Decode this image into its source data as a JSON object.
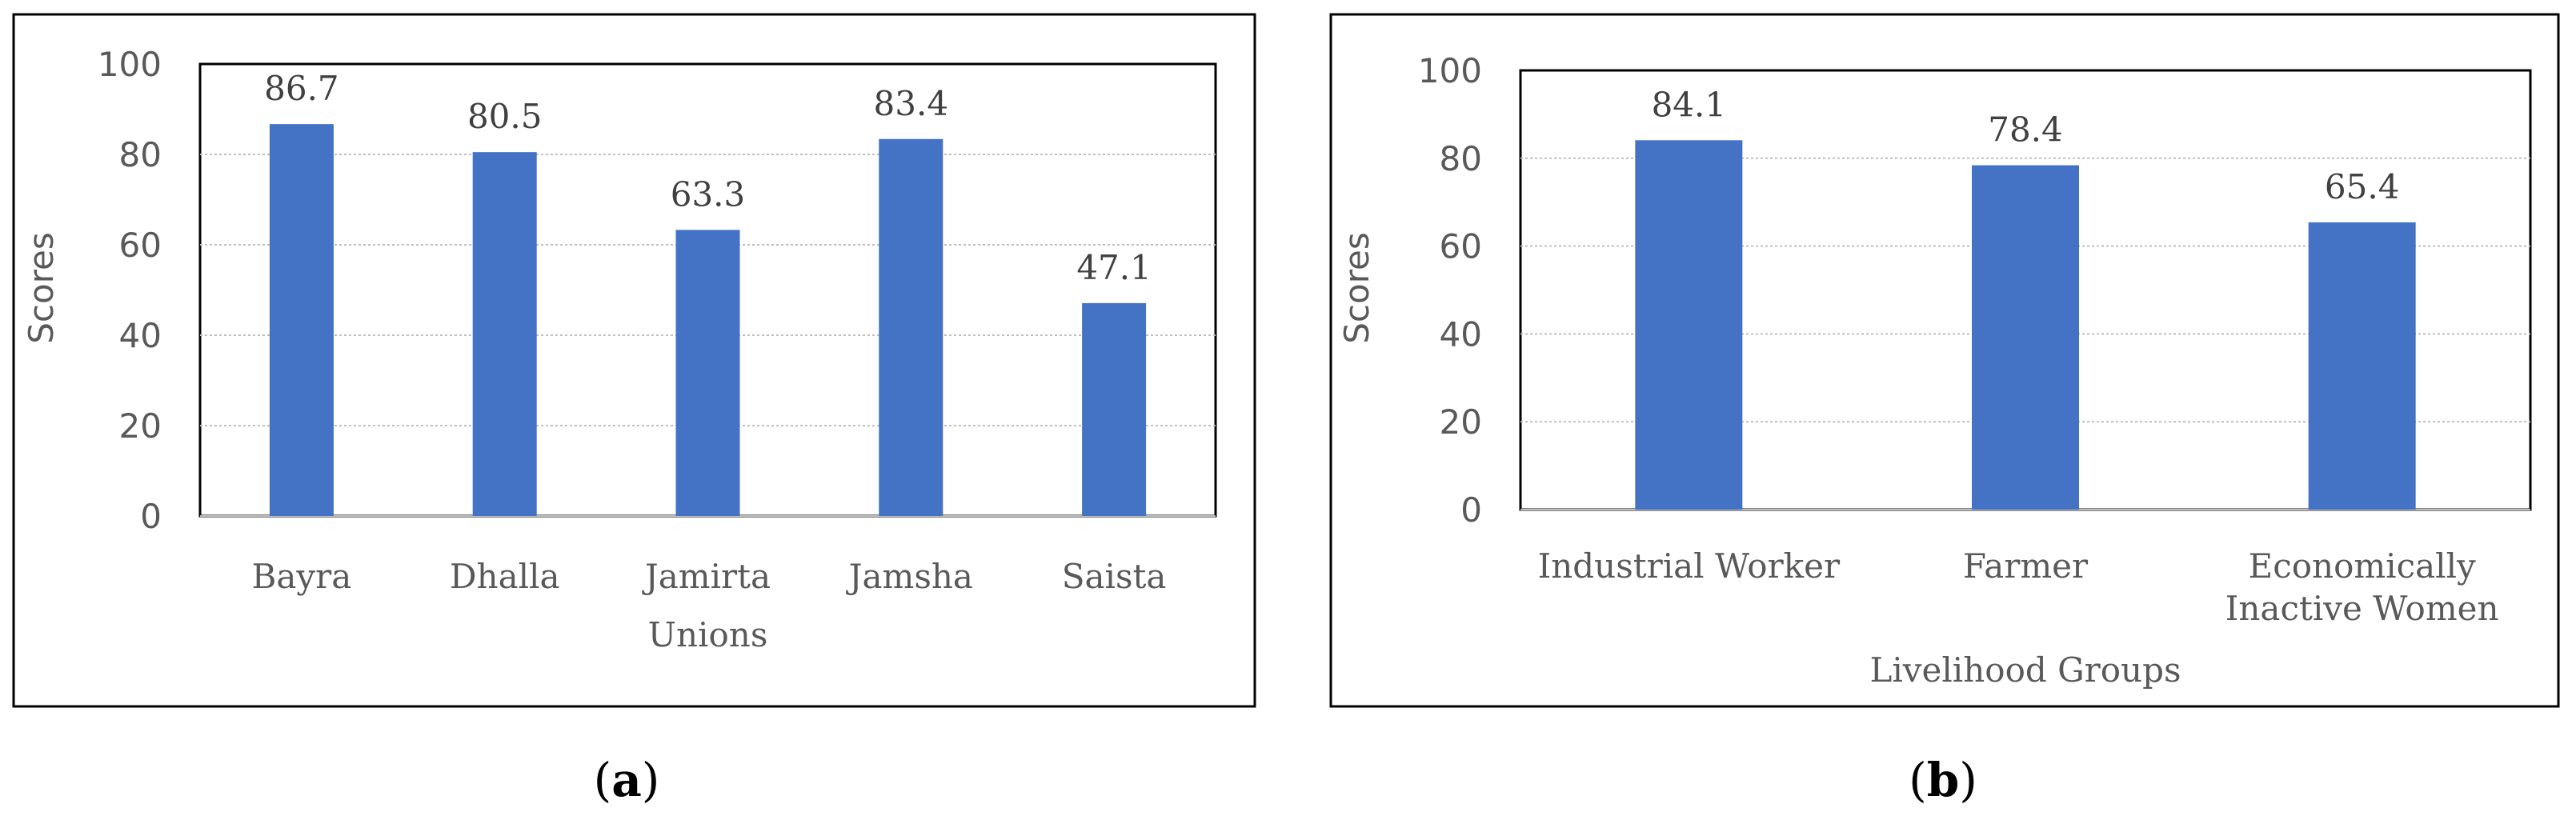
{
  "chart_data": [
    {
      "panel": "a",
      "type": "bar",
      "categories": [
        "Bayra",
        "Dhalla",
        "Jamirta",
        "Jamsha",
        "Saista"
      ],
      "values": [
        86.7,
        80.5,
        63.3,
        83.4,
        47.1
      ],
      "data_labels": [
        "86.7",
        "80.5",
        "63.3",
        "83.4",
        "47.1"
      ],
      "xlabel": "Unions",
      "ylabel": "Scores",
      "ylim": [
        0,
        100
      ],
      "yticks": [
        "0",
        "20",
        "40",
        "60",
        "80",
        "100"
      ],
      "grid": true,
      "bar_color": "#4472C4"
    },
    {
      "panel": "b",
      "type": "bar",
      "categories": [
        [
          "Industrial Worker"
        ],
        [
          "Farmer"
        ],
        [
          "Economically",
          "Inactive Women"
        ]
      ],
      "values": [
        84.1,
        78.4,
        65.4
      ],
      "data_labels": [
        "84.1",
        "78.4",
        "65.4"
      ],
      "xlabel": "Livelihood Groups",
      "ylabel": "Scores",
      "ylim": [
        0,
        100
      ],
      "yticks": [
        "0",
        "20",
        "40",
        "60",
        "80",
        "100"
      ],
      "grid": true,
      "bar_color": "#4472C4"
    }
  ],
  "captions": {
    "a": {
      "open": "(",
      "letter": "a",
      "close": ")"
    },
    "b": {
      "open": "(",
      "letter": "b",
      "close": ")"
    }
  }
}
